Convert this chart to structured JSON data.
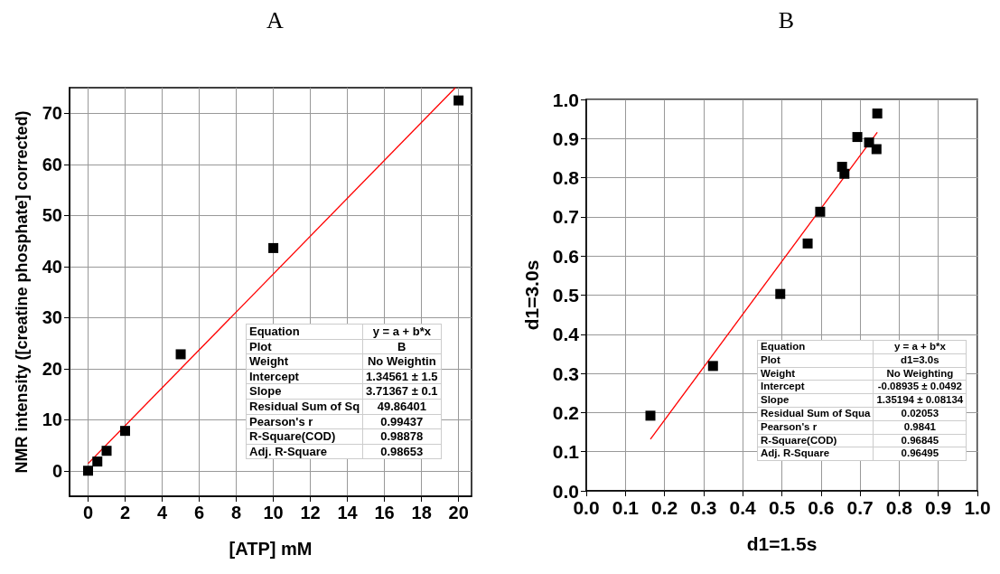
{
  "chart_data": [
    {
      "type": "scatter",
      "title": "A",
      "xlabel": "[ATP] mM",
      "ylabel": "NMR intensity ([creatine phosphate] corrected)",
      "xlim": [
        -1,
        20.7
      ],
      "xticks": [
        0,
        2,
        4,
        6,
        8,
        10,
        12,
        14,
        16,
        18,
        20
      ],
      "ylim": [
        -5,
        75
      ],
      "yticks": [
        0,
        10,
        20,
        30,
        40,
        50,
        60,
        70
      ],
      "grid": true,
      "marker": "square",
      "series": [
        {
          "type": "scatter",
          "color": "#000000",
          "x": [
            0,
            0.5,
            1,
            2,
            5,
            10,
            20
          ],
          "values": [
            0,
            1.8,
            3.9,
            7.8,
            22.8,
            43.6,
            72.5
          ]
        },
        {
          "type": "line",
          "color": "#ff0000",
          "marker": "none",
          "x": [
            0,
            19.83
          ],
          "values": [
            1.4,
            75
          ]
        }
      ],
      "annotations": [
        "Equation",
        "y = a + b*x",
        "Plot",
        "B",
        "Weight",
        "No Weightin",
        "Intercept",
        "1.34561 ± 1.5",
        "Slope",
        "3.71367 ± 0.1",
        "Residual Sum of Sq",
        "49.86401",
        "Pearson's r",
        "0.99437",
        "R-Square(COD)",
        "0.98878",
        "Adj. R-Square",
        "0.98653"
      ]
    },
    {
      "type": "scatter",
      "title": "B",
      "xlabel": "d1=1.5s",
      "ylabel": "d1=3.0s",
      "xlim": [
        0,
        1
      ],
      "xticks": [
        {
          "value": 0,
          "label": "0.0"
        },
        0.1,
        0.2,
        0.3,
        0.4,
        0.5,
        0.6,
        0.7,
        0.8,
        0.9,
        {
          "value": 1,
          "label": "1.0"
        }
      ],
      "ylim": [
        0,
        1
      ],
      "yticks": [
        {
          "value": 0,
          "label": "0.0"
        },
        0.1,
        0.2,
        0.3,
        0.4,
        0.5,
        0.6,
        0.7,
        0.8,
        0.9,
        {
          "value": 1,
          "label": "1.0"
        }
      ],
      "grid": true,
      "marker": "square",
      "series": [
        {
          "type": "scatter",
          "color": "#000000",
          "x": [
            0.164,
            0.324,
            0.496,
            0.566,
            0.598,
            0.654,
            0.66,
            0.693,
            0.723,
            0.742,
            0.744
          ],
          "values": [
            0.192,
            0.319,
            0.503,
            0.632,
            0.713,
            0.828,
            0.81,
            0.904,
            0.89,
            0.873,
            0.964
          ]
        },
        {
          "type": "line",
          "color": "#ff0000",
          "marker": "none",
          "x": [
            0.164,
            0.744
          ],
          "values": [
            0.132,
            0.916
          ]
        }
      ],
      "annotations": [
        "Equation",
        "y = a + b*x",
        "Plot",
        "d1=3.0s",
        "Weight",
        "No Weighting",
        "Intercept",
        "-0.08935 ± 0.0492",
        "Slope",
        "1.35194 ± 0.08134",
        "Residual Sum of Squa",
        "0.02053",
        "Pearson's r",
        "0.9841",
        "R-Square(COD)",
        "0.96845",
        "Adj. R-Square",
        "0.96495"
      ]
    }
  ]
}
